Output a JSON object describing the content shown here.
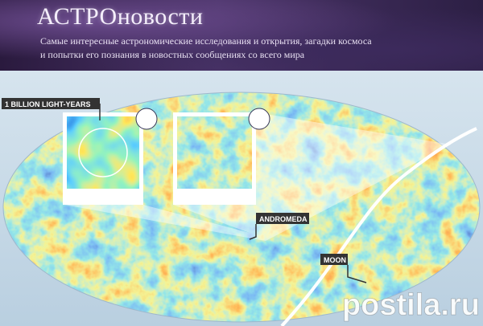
{
  "header": {
    "title": "АСТРОновости",
    "subtitle_lines": [
      "Самые интересные астрономические исследования и открытия, загадки космоса",
      "и попытки его познания в новостных сообщениях со всего мира"
    ]
  },
  "image": {
    "labels": {
      "scale": "1 BILLION LIGHT-YEARS",
      "andromeda": "ANDROMEDA",
      "moon": "MOON"
    },
    "watermark": "postila.ru"
  }
}
